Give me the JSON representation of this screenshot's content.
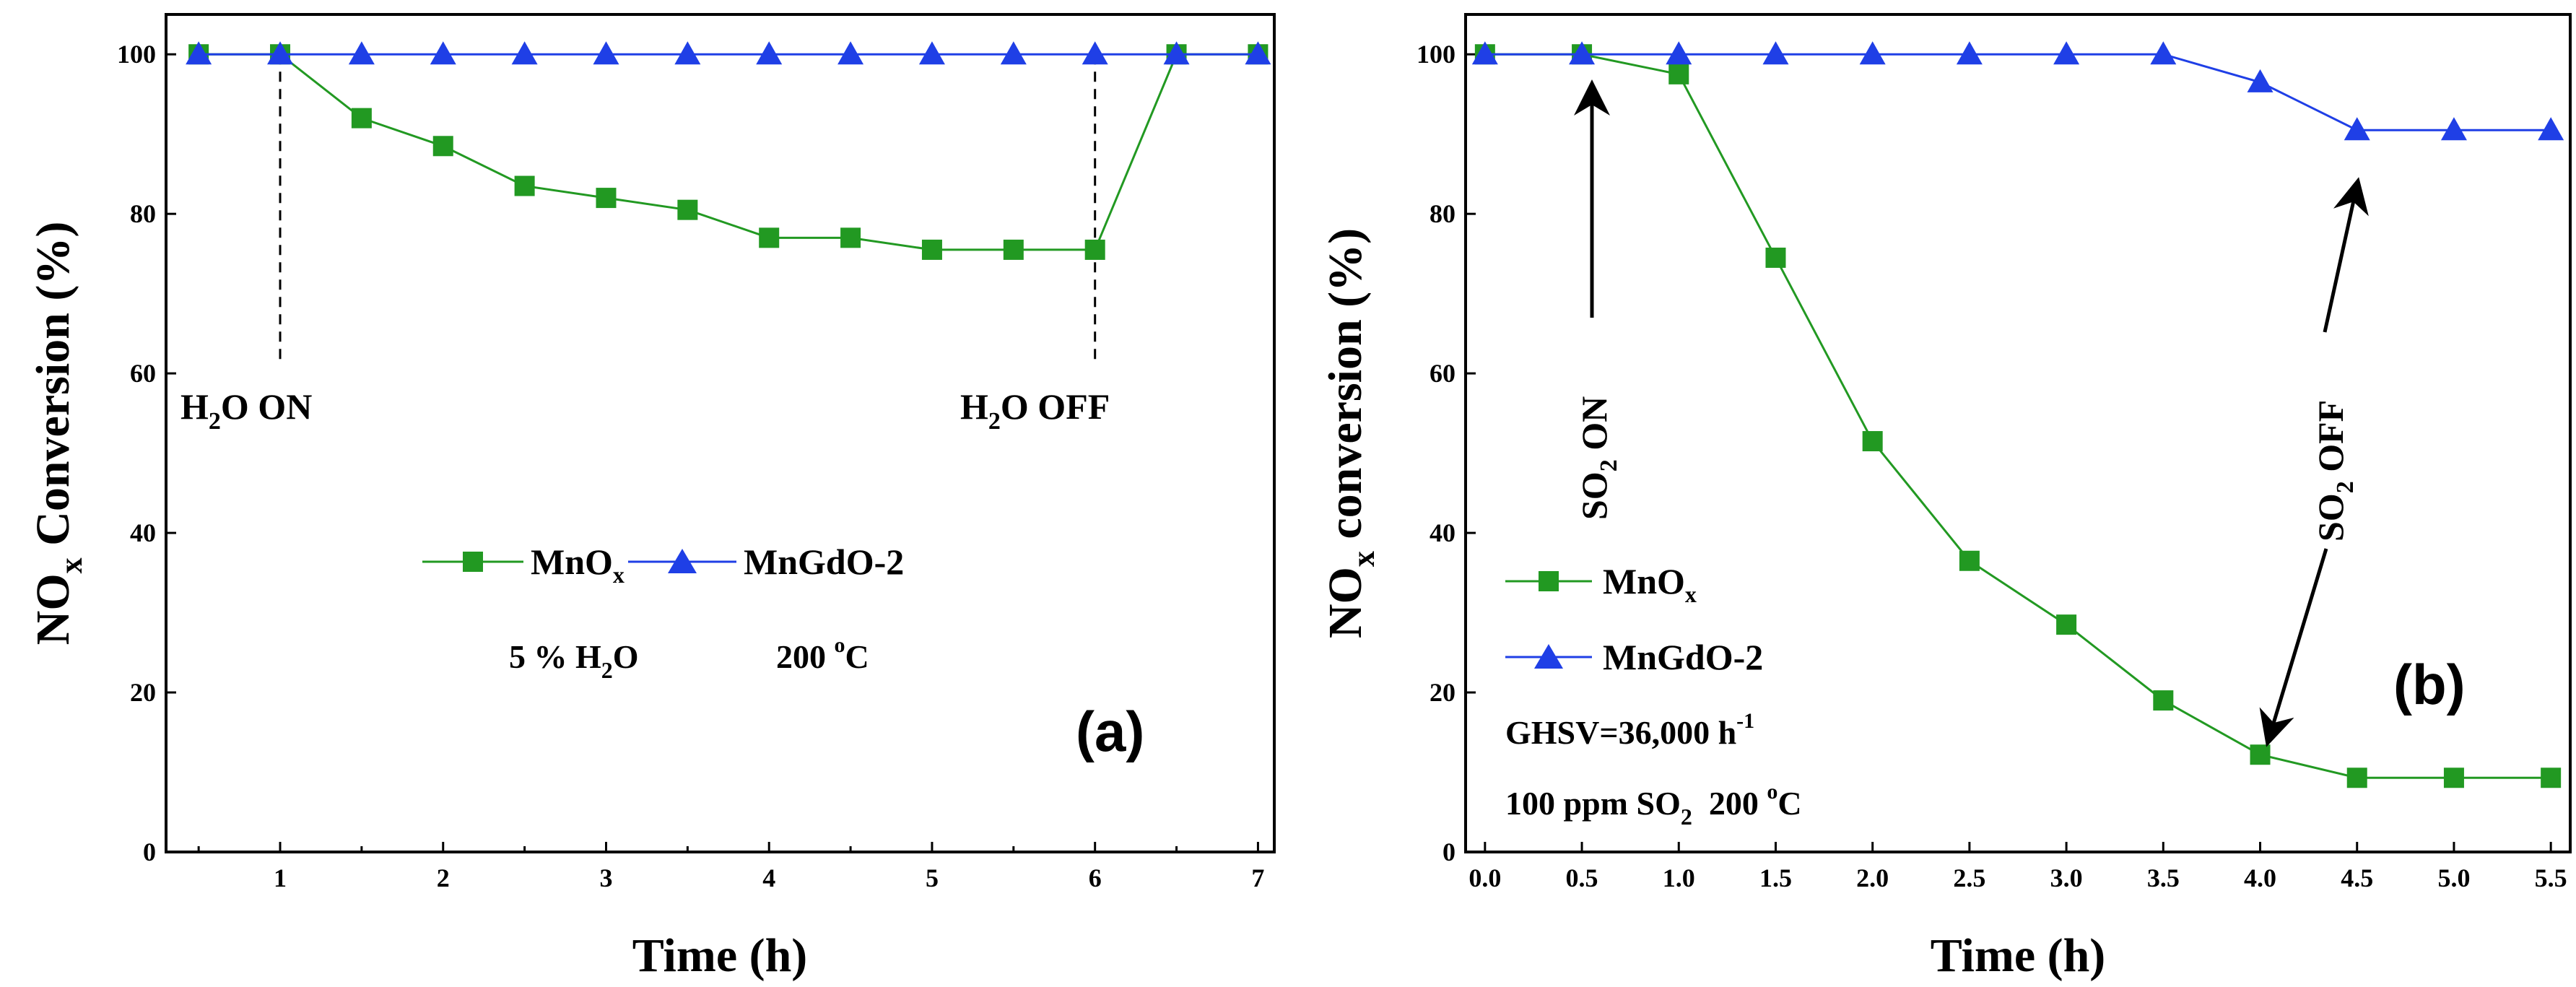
{
  "chart_data": [
    {
      "type": "line",
      "panel_label": "(a)",
      "xlabel": "Time (h)",
      "ylabel": {
        "main": "NO",
        "sub": "x",
        "rest": " Conversion (%)"
      },
      "xlim": [
        0.3,
        7.1
      ],
      "ylim": [
        0,
        105
      ],
      "xticks": [
        1,
        2,
        3,
        4,
        5,
        6,
        7
      ],
      "xticks_minor": [
        0.5,
        1.5,
        2.5,
        3.5,
        4.5,
        5.5,
        6.5
      ],
      "xtick_labels": [
        "1",
        "2",
        "3",
        "4",
        "5",
        "6",
        "7"
      ],
      "yticks": [
        0,
        20,
        40,
        60,
        80,
        100
      ],
      "ytick_labels": [
        "0",
        "20",
        "40",
        "60",
        "80",
        "100"
      ],
      "series": [
        {
          "name": "MnO",
          "name_sub": "x",
          "marker": "square",
          "color": "#229922",
          "x": [
            0.5,
            1.0,
            1.5,
            2.0,
            2.5,
            3.0,
            3.5,
            4.0,
            4.5,
            5.0,
            5.5,
            6.0,
            6.5,
            7.0
          ],
          "y": [
            100,
            100,
            92,
            88.5,
            83.5,
            82,
            80.5,
            77,
            77,
            75.5,
            75.5,
            75.5,
            100,
            100
          ]
        },
        {
          "name": "MnGdO-2",
          "marker": "triangle",
          "color": "#1f3fe6",
          "x": [
            0.5,
            1.0,
            1.5,
            2.0,
            2.5,
            3.0,
            3.5,
            4.0,
            4.5,
            5.0,
            5.5,
            6.0,
            6.5,
            7.0
          ],
          "y": [
            100,
            100,
            100,
            100,
            100,
            100,
            100,
            100,
            100,
            100,
            100,
            100,
            100,
            100
          ]
        }
      ],
      "annotations": [
        {
          "text_parts": [
            "H",
            "2",
            "O ON"
          ],
          "x": 1.0
        },
        {
          "text_parts": [
            "H",
            "2",
            "O OFF"
          ],
          "x": 6.0
        }
      ],
      "conditions": {
        "water": "5 % H",
        "water_sub": "2",
        "water_rest": "O",
        "temp": "200 ",
        "temp_sup": "o",
        "temp_rest": "C"
      }
    },
    {
      "type": "line",
      "panel_label": "(b)",
      "xlabel": "Time (h)",
      "ylabel": {
        "main": "NO",
        "sub": "x",
        "rest": " conversion (%)"
      },
      "xlim": [
        -0.1,
        5.6
      ],
      "ylim": [
        0,
        105
      ],
      "xticks": [
        0.0,
        0.5,
        1.0,
        1.5,
        2.0,
        2.5,
        3.0,
        3.5,
        4.0,
        4.5,
        5.0,
        5.5
      ],
      "xtick_labels": [
        "0.0",
        "0.5",
        "1.0",
        "1.5",
        "2.0",
        "2.5",
        "3.0",
        "3.5",
        "4.0",
        "4.5",
        "5.0",
        "5.5"
      ],
      "yticks": [
        0,
        20,
        40,
        60,
        80,
        100
      ],
      "ytick_labels": [
        "0",
        "20",
        "40",
        "60",
        "80",
        "100"
      ],
      "series": [
        {
          "name": "MnO",
          "name_sub": "x",
          "marker": "square",
          "color": "#229922",
          "x": [
            0.0,
            0.5,
            1.0,
            1.5,
            2.0,
            2.5,
            3.0,
            3.5,
            4.0,
            4.5,
            5.0,
            5.5
          ],
          "y": [
            100,
            100,
            97.5,
            74.5,
            51.5,
            36.5,
            28.5,
            19,
            12.2,
            9.3,
            9.3,
            9.3
          ]
        },
        {
          "name": "MnGdO-2",
          "marker": "triangle",
          "color": "#1f3fe6",
          "x": [
            0.0,
            0.5,
            1.0,
            1.5,
            2.0,
            2.5,
            3.0,
            3.5,
            4.0,
            4.5,
            5.0,
            5.5
          ],
          "y": [
            100,
            100,
            100,
            100,
            100,
            100,
            100,
            100,
            96.5,
            90.5,
            90.5,
            90.5
          ]
        }
      ],
      "annotations": [
        {
          "text_parts": [
            "SO",
            "2",
            " ON"
          ],
          "x": 0.5
        },
        {
          "text_parts": [
            "SO",
            "2",
            " OFF"
          ],
          "x": 4.0
        }
      ],
      "conditions": {
        "ghsv": "GHSV=36,000 h",
        "ghsv_sup": "-1",
        "so2": "100 ppm SO",
        "so2_sub": "2",
        "so2_rest": "  200 ",
        "temp_sup": "o",
        "temp_rest": "C"
      }
    }
  ]
}
